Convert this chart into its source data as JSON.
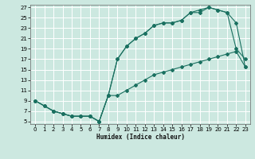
{
  "title": "",
  "xlabel": "Humidex (Indice chaleur)",
  "bg_color": "#cce8e0",
  "grid_color": "#ffffff",
  "line_color": "#1a7060",
  "xlim": [
    -0.5,
    23.5
  ],
  "ylim": [
    4.5,
    27.5
  ],
  "xticks": [
    0,
    1,
    2,
    3,
    4,
    5,
    6,
    7,
    8,
    9,
    10,
    11,
    12,
    13,
    14,
    15,
    16,
    17,
    18,
    19,
    20,
    21,
    22,
    23
  ],
  "yticks": [
    5,
    7,
    9,
    11,
    13,
    15,
    17,
    19,
    21,
    23,
    25,
    27
  ],
  "line1_x": [
    0,
    1,
    2,
    3,
    4,
    5,
    6,
    7,
    8,
    9,
    10,
    11,
    12,
    13,
    14,
    15,
    16,
    17,
    18,
    19,
    20,
    21,
    22,
    23
  ],
  "line1_y": [
    9,
    8,
    7,
    6.5,
    6,
    6,
    6,
    5,
    10,
    17,
    19.5,
    21,
    22,
    23.5,
    24,
    24,
    24.5,
    26,
    26,
    27,
    26.5,
    26,
    19,
    17
  ],
  "line2_x": [
    0,
    1,
    2,
    3,
    4,
    5,
    6,
    7,
    8,
    9,
    10,
    11,
    12,
    13,
    14,
    15,
    16,
    17,
    18,
    19,
    20,
    21,
    22,
    23
  ],
  "line2_y": [
    9,
    8,
    7,
    6.5,
    6,
    6,
    6,
    5,
    10,
    17,
    19.5,
    21,
    22,
    23.5,
    24,
    24,
    24.5,
    26,
    26.5,
    27,
    26.5,
    26,
    24,
    15.5
  ],
  "line3_x": [
    0,
    2,
    3,
    4,
    5,
    6,
    7,
    8,
    9,
    10,
    11,
    12,
    13,
    14,
    15,
    16,
    17,
    18,
    19,
    20,
    21,
    22,
    23
  ],
  "line3_y": [
    9,
    7,
    6.5,
    6,
    6,
    6,
    5,
    10,
    10,
    11,
    12,
    13,
    14,
    14.5,
    15,
    15.5,
    16,
    16.5,
    17,
    17.5,
    18,
    18.5,
    15.5
  ]
}
